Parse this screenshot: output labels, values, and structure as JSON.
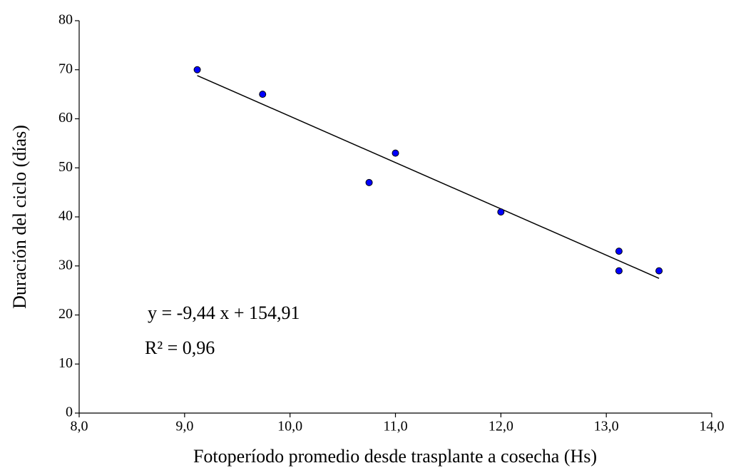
{
  "chart_data": {
    "type": "scatter",
    "x_label": "Fotoperíodo promedio desde trasplante a cosecha (Hs)",
    "y_label": "Duración del ciclo (días)",
    "x": [
      9.12,
      9.74,
      10.75,
      11.0,
      12.0,
      13.12,
      13.12,
      13.5
    ],
    "values": [
      70,
      65,
      47,
      53,
      41,
      33,
      29,
      29
    ],
    "color": "#0000ff",
    "xlim": [
      8,
      14
    ],
    "xticks": [
      {
        "value": 8,
        "label": "8,0"
      },
      {
        "value": 9,
        "label": "9,0"
      },
      {
        "value": 10,
        "label": "10,0"
      },
      {
        "value": 11,
        "label": "11,0"
      },
      {
        "value": 12,
        "label": "12,0"
      },
      {
        "value": 13,
        "label": "13,0"
      },
      {
        "value": 14,
        "label": "14,0"
      }
    ],
    "ylim": [
      0,
      80
    ],
    "yticks": [
      0,
      10,
      20,
      30,
      40,
      50,
      60,
      70,
      80
    ],
    "grid": false,
    "trendline": {
      "equation": "y = -9,44 x + 154,91",
      "slope": -9.44,
      "intercept": 154.91,
      "r2": "R² = 0,96"
    }
  }
}
